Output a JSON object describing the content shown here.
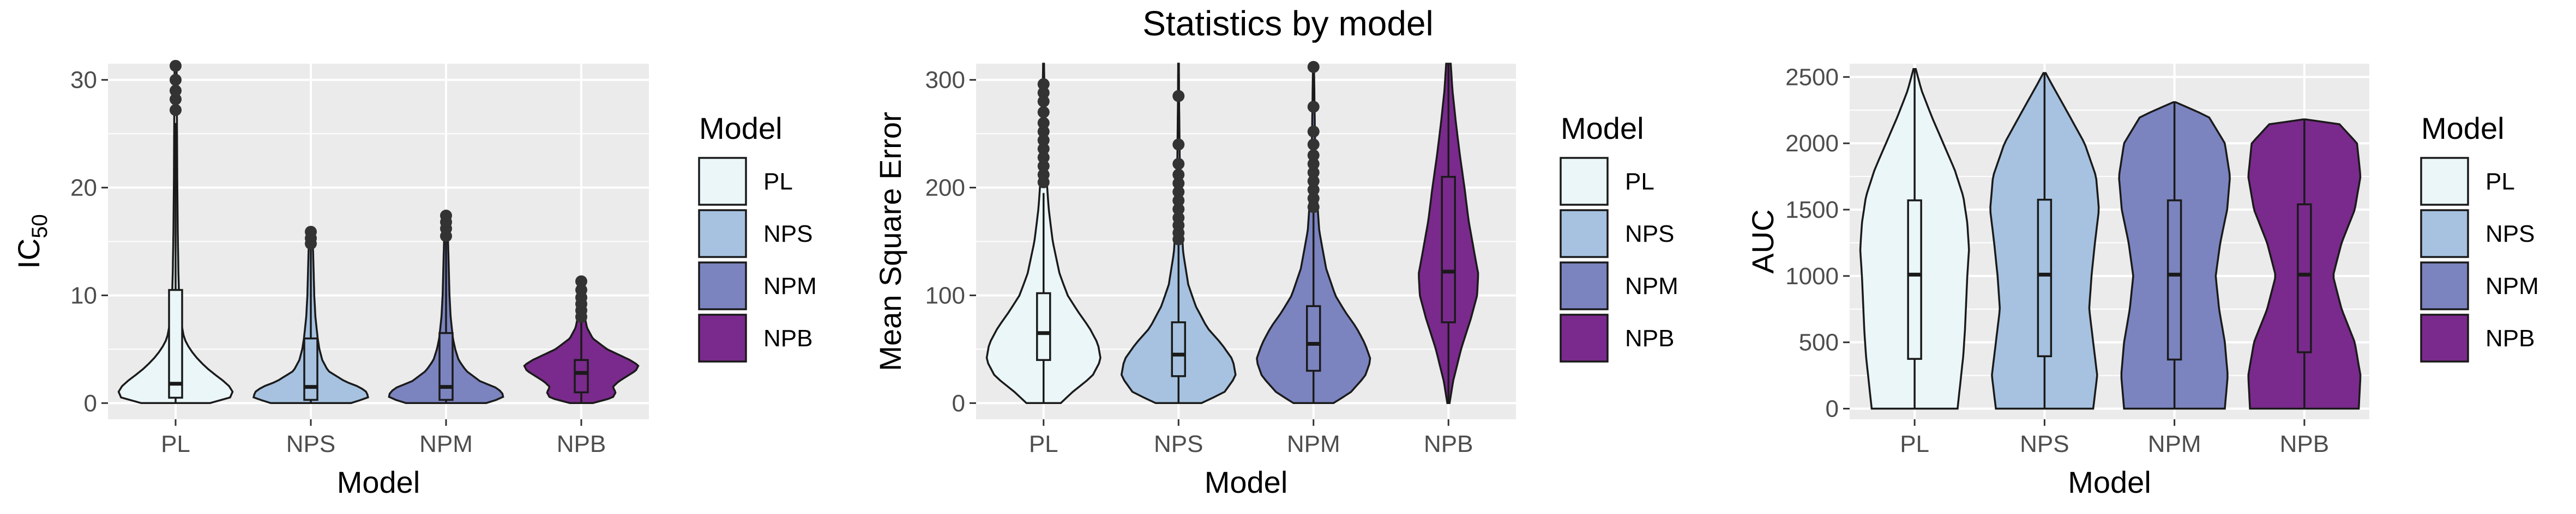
{
  "figure": {
    "title": "Statistics by model"
  },
  "colors": {
    "panel_bg": "#ebebeb",
    "grid": "#ffffff",
    "outline": "#1a1a1a",
    "fills": [
      "#eaf6f8",
      "#a6c2e0",
      "#7b84bf",
      "#7a2a8c"
    ]
  },
  "chart_data": [
    {
      "type": "violin",
      "xlabel": "Model",
      "ylabel": "IC",
      "ylabel_sub": "50",
      "ylim": [
        -1.5,
        31.5
      ],
      "yticks": [
        0,
        10,
        20,
        30
      ],
      "categories": [
        "PL",
        "NPS",
        "NPM",
        "NPB"
      ],
      "legend": {
        "title": "Model",
        "entries": [
          "PL",
          "NPS",
          "NPM",
          "NPB"
        ],
        "position": "right"
      },
      "series": [
        {
          "name": "PL",
          "min": 0,
          "q1": 0.5,
          "median": 1.8,
          "q3": 10.5,
          "max": 31.5,
          "whisker_high": 26,
          "outliers": [
            27.2,
            28.2,
            29,
            30,
            31.3
          ],
          "density": [
            [
              0,
              0.6
            ],
            [
              0.5,
              0.95
            ],
            [
              1,
              1.0
            ],
            [
              1.5,
              0.95
            ],
            [
              2,
              0.85
            ],
            [
              3,
              0.6
            ],
            [
              4,
              0.4
            ],
            [
              5,
              0.25
            ],
            [
              6,
              0.15
            ],
            [
              8,
              0.08
            ],
            [
              10,
              0.06
            ],
            [
              12,
              0.05
            ],
            [
              15,
              0.04
            ],
            [
              20,
              0.03
            ],
            [
              25,
              0.025
            ],
            [
              30,
              0.02
            ],
            [
              31.5,
              0.015
            ]
          ]
        },
        {
          "name": "NPS",
          "min": 0,
          "q1": 0.3,
          "median": 1.5,
          "q3": 6,
          "max": 16,
          "whisker_high": 14.5,
          "outliers": [
            14.8,
            15.3,
            15.9
          ],
          "density": [
            [
              0,
              0.7
            ],
            [
              0.5,
              1.0
            ],
            [
              1,
              0.98
            ],
            [
              1.5,
              0.85
            ],
            [
              2,
              0.6
            ],
            [
              3,
              0.3
            ],
            [
              4,
              0.2
            ],
            [
              5,
              0.15
            ],
            [
              6,
              0.12
            ],
            [
              8,
              0.08
            ],
            [
              10,
              0.06
            ],
            [
              12,
              0.05
            ],
            [
              14,
              0.04
            ],
            [
              16,
              0.02
            ]
          ]
        },
        {
          "name": "NPM",
          "min": 0,
          "q1": 0.3,
          "median": 1.5,
          "q3": 6.5,
          "max": 17.5,
          "whisker_high": 15,
          "outliers": [
            15.5,
            16.2,
            16.8,
            17.4
          ],
          "density": [
            [
              0,
              0.7
            ],
            [
              0.5,
              1.0
            ],
            [
              1,
              0.98
            ],
            [
              1.5,
              0.85
            ],
            [
              2,
              0.6
            ],
            [
              3,
              0.35
            ],
            [
              4,
              0.22
            ],
            [
              5,
              0.16
            ],
            [
              6,
              0.12
            ],
            [
              8,
              0.08
            ],
            [
              10,
              0.06
            ],
            [
              12,
              0.05
            ],
            [
              14,
              0.04
            ],
            [
              16,
              0.03
            ],
            [
              17.5,
              0.02
            ]
          ]
        },
        {
          "name": "NPB",
          "min": 0,
          "q1": 1,
          "median": 2.8,
          "q3": 4,
          "max": 11.5,
          "whisker_high": 7.5,
          "outliers": [
            8,
            8.6,
            9.2,
            9.8,
            10.5,
            11.3
          ],
          "density": [
            [
              0,
              0.2
            ],
            [
              0.5,
              0.55
            ],
            [
              1,
              0.6
            ],
            [
              1.5,
              0.55
            ],
            [
              2,
              0.65
            ],
            [
              2.5,
              0.8
            ],
            [
              3,
              0.95
            ],
            [
              3.5,
              1.0
            ],
            [
              4,
              0.85
            ],
            [
              5,
              0.45
            ],
            [
              6,
              0.2
            ],
            [
              7,
              0.1
            ],
            [
              8,
              0.06
            ],
            [
              9,
              0.05
            ],
            [
              10,
              0.04
            ],
            [
              11.5,
              0.02
            ]
          ]
        }
      ]
    },
    {
      "type": "violin",
      "xlabel": "Model",
      "ylabel": "Mean Square Error",
      "ylim": [
        -15,
        315
      ],
      "yticks": [
        0,
        100,
        200,
        300
      ],
      "categories": [
        "PL",
        "NPS",
        "NPM",
        "NPB"
      ],
      "legend": {
        "title": "Model",
        "entries": [
          "PL",
          "NPS",
          "NPM",
          "NPB"
        ],
        "position": "right"
      },
      "series": [
        {
          "name": "PL",
          "min": 0,
          "q1": 40,
          "median": 65,
          "q3": 102,
          "max": 315,
          "whisker_high": 195,
          "outliers": [
            205,
            212,
            220,
            228,
            236,
            244,
            252,
            260,
            270,
            280,
            288,
            296
          ],
          "density": [
            [
              0,
              0.3
            ],
            [
              10,
              0.5
            ],
            [
              25,
              0.85
            ],
            [
              40,
              1.0
            ],
            [
              55,
              0.95
            ],
            [
              70,
              0.8
            ],
            [
              85,
              0.6
            ],
            [
              100,
              0.42
            ],
            [
              120,
              0.28
            ],
            [
              150,
              0.16
            ],
            [
              180,
              0.09
            ],
            [
              210,
              0.05
            ],
            [
              250,
              0.03
            ],
            [
              290,
              0.015
            ],
            [
              315,
              0.008
            ]
          ]
        },
        {
          "name": "NPS",
          "min": 0,
          "q1": 25,
          "median": 45,
          "q3": 75,
          "max": 315,
          "whisker_high": 148,
          "outliers": [
            152,
            158,
            165,
            172,
            180,
            188,
            196,
            204,
            212,
            222,
            240,
            285
          ],
          "density": [
            [
              0,
              0.4
            ],
            [
              10,
              0.8
            ],
            [
              25,
              1.0
            ],
            [
              40,
              0.95
            ],
            [
              55,
              0.75
            ],
            [
              70,
              0.5
            ],
            [
              90,
              0.3
            ],
            [
              110,
              0.17
            ],
            [
              140,
              0.08
            ],
            [
              180,
              0.04
            ],
            [
              230,
              0.02
            ],
            [
              280,
              0.01
            ],
            [
              315,
              0.006
            ]
          ]
        },
        {
          "name": "NPM",
          "min": 0,
          "q1": 30,
          "median": 55,
          "q3": 90,
          "max": 312,
          "whisker_high": 178,
          "outliers": [
            182,
            190,
            198,
            206,
            214,
            222,
            230,
            240,
            252,
            275,
            312
          ],
          "density": [
            [
              0,
              0.35
            ],
            [
              10,
              0.65
            ],
            [
              25,
              0.9
            ],
            [
              40,
              1.0
            ],
            [
              55,
              0.9
            ],
            [
              70,
              0.75
            ],
            [
              85,
              0.55
            ],
            [
              100,
              0.38
            ],
            [
              125,
              0.22
            ],
            [
              160,
              0.1
            ],
            [
              200,
              0.05
            ],
            [
              250,
              0.025
            ],
            [
              300,
              0.012
            ],
            [
              312,
              0.008
            ]
          ]
        },
        {
          "name": "NPB",
          "min": 0,
          "q1": 75,
          "median": 122,
          "q3": 210,
          "max": 315,
          "whisker_high": 315,
          "outliers": [],
          "density": [
            [
              0,
              0.02
            ],
            [
              20,
              0.08
            ],
            [
              50,
              0.22
            ],
            [
              80,
              0.4
            ],
            [
              100,
              0.5
            ],
            [
              120,
              0.52
            ],
            [
              140,
              0.45
            ],
            [
              170,
              0.35
            ],
            [
              200,
              0.28
            ],
            [
              230,
              0.2
            ],
            [
              260,
              0.13
            ],
            [
              290,
              0.07
            ],
            [
              315,
              0.04
            ]
          ]
        }
      ]
    },
    {
      "type": "violin",
      "xlabel": "Model",
      "ylabel": "AUC",
      "ylim": [
        -80,
        2600
      ],
      "yticks": [
        0,
        500,
        1000,
        1500,
        2000,
        2500
      ],
      "categories": [
        "PL",
        "NPS",
        "NPM",
        "NPB"
      ],
      "legend": {
        "title": "Model",
        "entries": [
          "PL",
          "NPS",
          "NPM",
          "NPB"
        ],
        "position": "right"
      },
      "series": [
        {
          "name": "PL",
          "min": 0,
          "q1": 375,
          "median": 1010,
          "q3": 1570,
          "max": 2560,
          "whisker_high": 2560,
          "outliers": [],
          "density": [
            [
              0,
              0.75
            ],
            [
              200,
              0.8
            ],
            [
              400,
              0.85
            ],
            [
              600,
              0.88
            ],
            [
              800,
              0.9
            ],
            [
              1000,
              0.92
            ],
            [
              1200,
              0.95
            ],
            [
              1400,
              0.92
            ],
            [
              1600,
              0.85
            ],
            [
              1800,
              0.7
            ],
            [
              2000,
              0.5
            ],
            [
              2200,
              0.3
            ],
            [
              2400,
              0.12
            ],
            [
              2560,
              0.02
            ]
          ]
        },
        {
          "name": "NPS",
          "min": 0,
          "q1": 395,
          "median": 1010,
          "q3": 1575,
          "max": 2530,
          "whisker_high": 2530,
          "outliers": [],
          "density": [
            [
              0,
              0.85
            ],
            [
              250,
              0.92
            ],
            [
              500,
              0.85
            ],
            [
              750,
              0.78
            ],
            [
              1000,
              0.82
            ],
            [
              1250,
              0.88
            ],
            [
              1500,
              0.95
            ],
            [
              1750,
              0.9
            ],
            [
              2000,
              0.7
            ],
            [
              2250,
              0.38
            ],
            [
              2450,
              0.12
            ],
            [
              2530,
              0.02
            ]
          ]
        },
        {
          "name": "NPM",
          "min": 0,
          "q1": 370,
          "median": 1010,
          "q3": 1570,
          "max": 2310,
          "whisker_high": 2310,
          "outliers": [],
          "density": [
            [
              0,
              0.88
            ],
            [
              250,
              0.93
            ],
            [
              500,
              0.88
            ],
            [
              750,
              0.78
            ],
            [
              1000,
              0.72
            ],
            [
              1250,
              0.8
            ],
            [
              1500,
              0.92
            ],
            [
              1750,
              0.97
            ],
            [
              2000,
              0.88
            ],
            [
              2200,
              0.6
            ],
            [
              2310,
              0.02
            ]
          ]
        },
        {
          "name": "NPB",
          "min": 0,
          "q1": 425,
          "median": 1010,
          "q3": 1540,
          "max": 2180,
          "whisker_high": 2180,
          "outliers": [],
          "density": [
            [
              0,
              0.95
            ],
            [
              250,
              0.98
            ],
            [
              500,
              0.88
            ],
            [
              750,
              0.65
            ],
            [
              1000,
              0.5
            ],
            [
              1250,
              0.65
            ],
            [
              1500,
              0.88
            ],
            [
              1750,
              0.98
            ],
            [
              2000,
              0.92
            ],
            [
              2150,
              0.6
            ],
            [
              2180,
              0.02
            ]
          ]
        }
      ]
    }
  ]
}
